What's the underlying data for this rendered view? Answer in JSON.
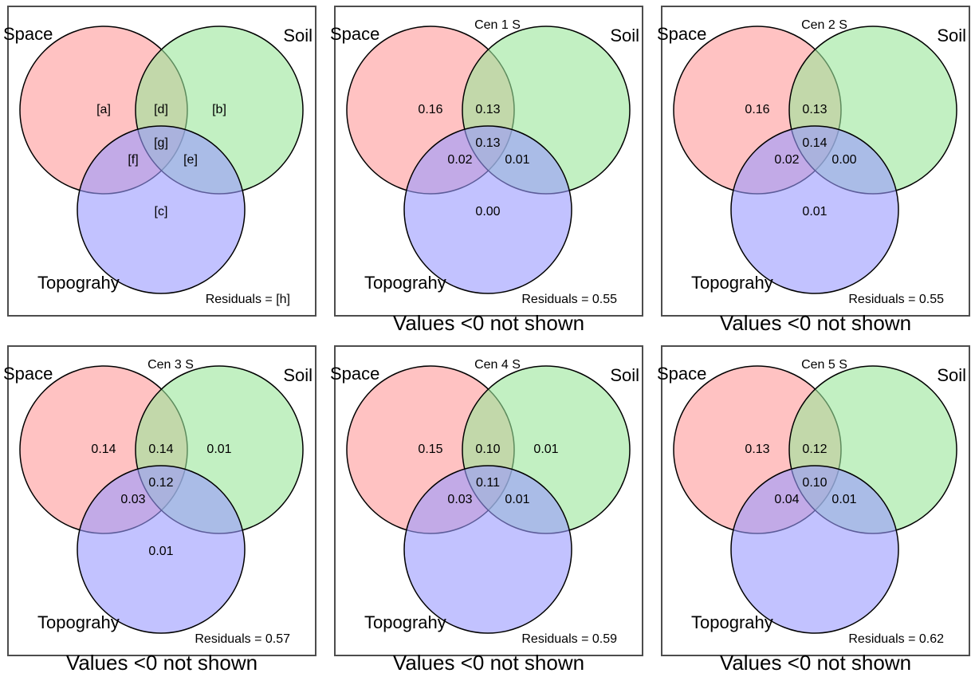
{
  "colors": {
    "space_fill": "#ff9999",
    "soil_fill": "#99e699",
    "topo_fill": "#9999ff",
    "fill_opacity": 0.6,
    "stroke": "#000000",
    "frame": "#4d4d4d",
    "background": "#ffffff"
  },
  "sets": {
    "space": "Space",
    "soil": "Soil",
    "topography": "Topograhy"
  },
  "panels": [
    {
      "title": "",
      "regions": {
        "a": "[a]",
        "b": "[b]",
        "c": "[c]",
        "d": "[d]",
        "e": "[e]",
        "f": "[f]",
        "g": "[g]"
      },
      "residuals": "Residuals = [h]",
      "note": ""
    },
    {
      "title": "Cen 1 S",
      "regions": {
        "a": "0.16",
        "b": "",
        "c": "0.00",
        "d": "0.13",
        "e": "0.01",
        "f": "0.02",
        "g": "0.13"
      },
      "residuals": "Residuals = 0.55",
      "note": "Values <0 not shown"
    },
    {
      "title": "Cen 2 S",
      "regions": {
        "a": "0.16",
        "b": "",
        "c": "0.01",
        "d": "0.13",
        "e": "0.00",
        "f": "0.02",
        "g": "0.14"
      },
      "residuals": "Residuals = 0.55",
      "note": "Values <0 not shown"
    },
    {
      "title": "Cen 3 S",
      "regions": {
        "a": "0.14",
        "b": "0.01",
        "c": "0.01",
        "d": "0.14",
        "e": "",
        "f": "0.03",
        "g": "0.12"
      },
      "residuals": "Residuals = 0.57",
      "note": "Values <0 not shown"
    },
    {
      "title": "Cen 4 S",
      "regions": {
        "a": "0.15",
        "b": "0.01",
        "c": "",
        "d": "0.10",
        "e": "0.01",
        "f": "0.03",
        "g": "0.11"
      },
      "residuals": "Residuals = 0.59",
      "note": "Values <0 not shown"
    },
    {
      "title": "Cen 5 S",
      "regions": {
        "a": "0.13",
        "b": "",
        "c": "",
        "d": "0.12",
        "e": "0.01",
        "f": "0.04",
        "g": "0.10"
      },
      "residuals": "Residuals = 0.62",
      "note": "Values <0 not shown"
    }
  ]
}
